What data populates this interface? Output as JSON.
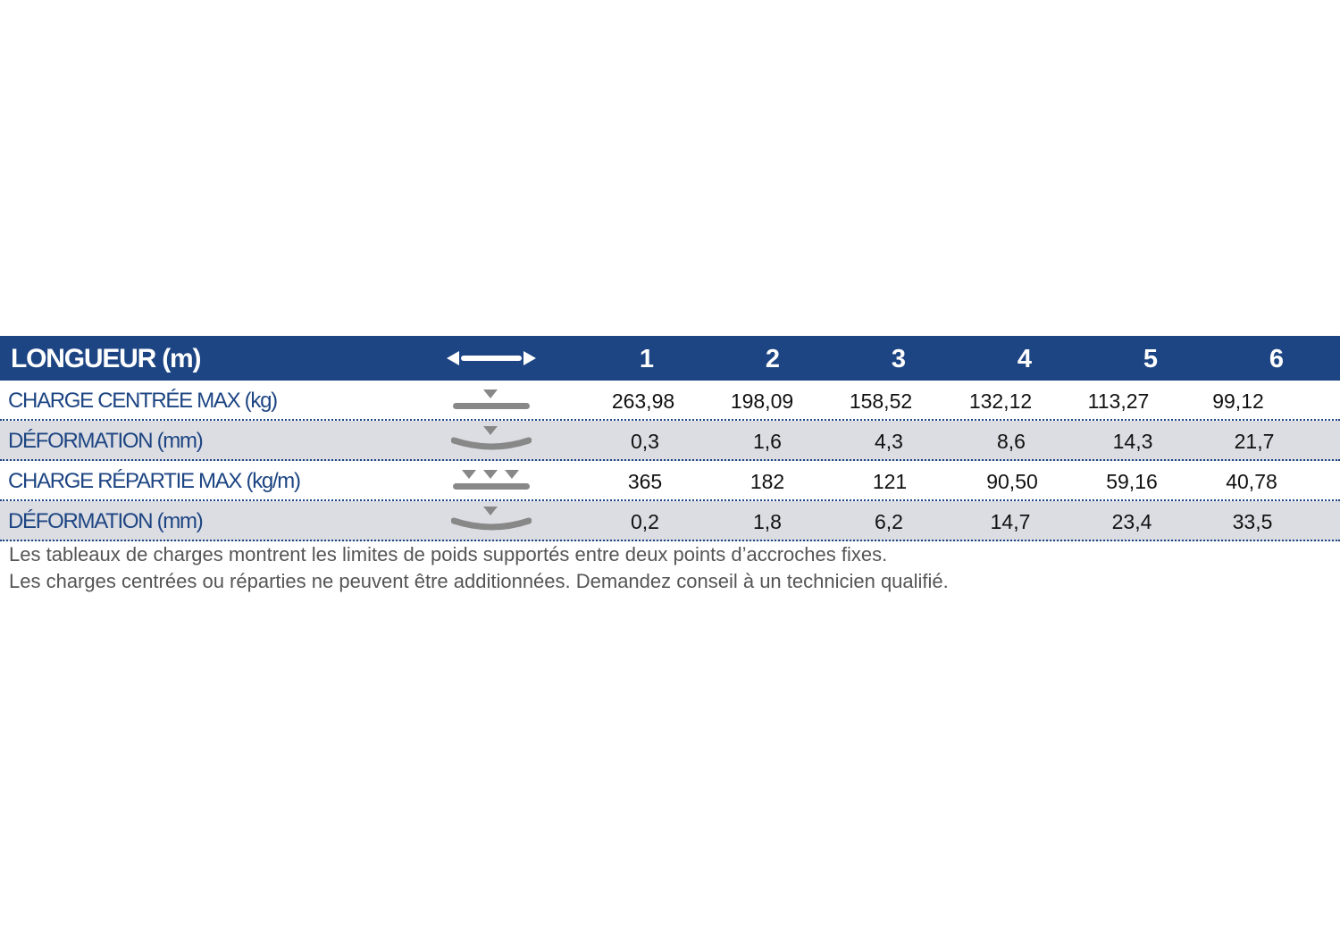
{
  "header": {
    "title": "LONGUEUR (m)",
    "icon": "double-arrow-length-icon",
    "columns": [
      "1",
      "2",
      "3",
      "4",
      "5",
      "6"
    ],
    "color": "#1d4583"
  },
  "rows": [
    {
      "label": "CHARGE CENTRÉE MAX (kg)",
      "icon": "centered-load-icon",
      "values": [
        "263,98",
        "198,09",
        "158,52",
        "132,12",
        "113,27",
        "99,12"
      ]
    },
    {
      "label": "DÉFORMATION (mm)",
      "icon": "centered-deflection-icon",
      "values": [
        "0,3",
        "1,6",
        "4,3",
        "8,6",
        "14,3",
        "21,7"
      ]
    },
    {
      "label": "CHARGE RÉPARTIE MAX (kg/m)",
      "icon": "distributed-load-icon",
      "values": [
        "365",
        "182",
        "121",
        "90,50",
        "59,16",
        "40,78"
      ]
    },
    {
      "label": "DÉFORMATION (mm)",
      "icon": "distributed-deflection-icon",
      "values": [
        "0,2",
        "1,8",
        "6,2",
        "14,7",
        "23,4",
        "33,5"
      ]
    }
  ],
  "notes": [
    "Les tableaux de charges montrent les limites de poids supportés entre deux points d’accroches fixes.",
    "Les charges centrées ou réparties ne peuvent être additionnées. Demandez conseil à un technicien qualifié."
  ]
}
